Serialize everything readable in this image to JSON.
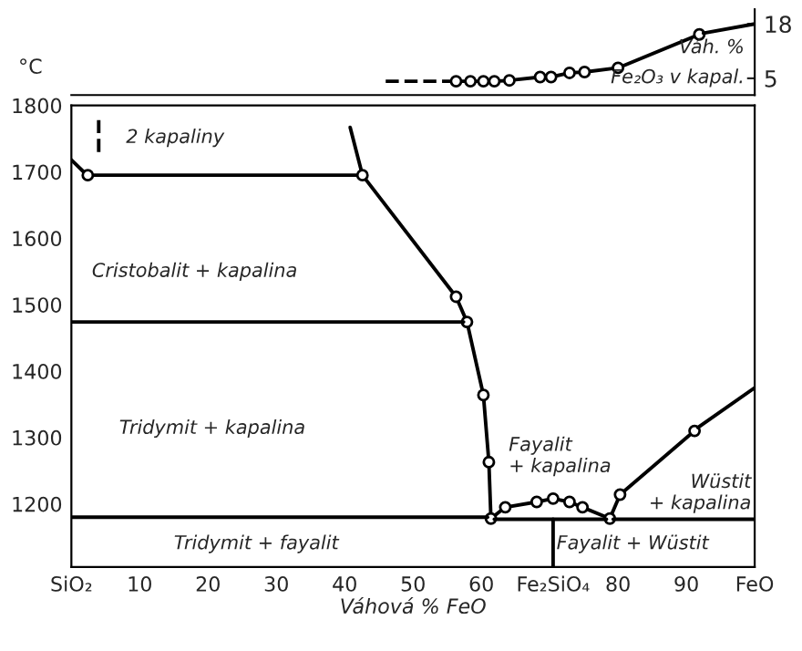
{
  "chart_data": [
    {
      "type": "line",
      "xlim": [
        0,
        100
      ],
      "ylim": [
        1,
        21.5
      ],
      "yticks": [
        5,
        18
      ],
      "tick_labels": "y",
      "grid": false,
      "legend": false,
      "series": [
        {
          "color": "#000000",
          "line_style": "dashed",
          "marker": "none",
          "x": [
            46,
            55.6
          ],
          "values": [
            4.3,
            4.3
          ]
        },
        {
          "color": "#000000",
          "line_style": "solid",
          "marker": "circle",
          "x": [
            56.3,
            58.4,
            60.3,
            61.9,
            64.1,
            68.6,
            70.2,
            72.9,
            75.1,
            80,
            91.9
          ],
          "values": [
            4.3,
            4.3,
            4.3,
            4.3,
            4.5,
            5.3,
            5.3,
            6.3,
            6.5,
            7.5,
            15.5
          ]
        },
        {
          "color": "#000000",
          "line_style": "solid",
          "marker": "none",
          "x": [
            92.5,
            100
          ],
          "values": [
            15.8,
            18
          ]
        }
      ],
      "annotations": [
        "Váh. %",
        "Fe₂O₃ v kapal."
      ]
    },
    {
      "type": "line",
      "xlim": [
        0,
        100
      ],
      "ylim": [
        1105,
        1800
      ],
      "yticks": [
        1200,
        1300,
        1400,
        1500,
        1600,
        1700,
        1800
      ],
      "xticks": [
        {
          "value": 0,
          "label": "SiO₂"
        },
        10,
        20,
        30,
        40,
        50,
        60,
        {
          "value": 70.5,
          "label": "Fe₂SiO₄"
        },
        80,
        90,
        {
          "value": 100,
          "label": "FeO"
        }
      ],
      "xlabel": "Váhová % FeO",
      "ylabel": "°C",
      "grid": false,
      "legend": false,
      "series": [
        {
          "color": "#000000",
          "line_style": "solid",
          "marker": "none",
          "x": [
            0,
            1.9
          ],
          "values": [
            1718,
            1699
          ]
        },
        {
          "color": "#000000",
          "line_style": "dashed",
          "marker": "none",
          "x": [
            4,
            4
          ],
          "values": [
            1730,
            1778
          ]
        },
        {
          "color": "#000000",
          "line_style": "solid",
          "marker": "none",
          "x": [
            40.8,
            42.4
          ],
          "values": [
            1767,
            1703
          ]
        },
        {
          "color": "#000000",
          "line_style": "solid",
          "marker": "circle",
          "x": [
            2.4,
            42.6,
            56.3,
            57.9,
            60.3,
            61.1,
            61.4,
            63.5,
            68.1,
            70.5,
            72.9,
            74.8,
            78.8,
            80.3,
            91.2
          ],
          "values": [
            1695,
            1695,
            1512,
            1474,
            1364,
            1263,
            1178,
            1195,
            1203,
            1208,
            1203,
            1195,
            1178,
            1214,
            1310
          ]
        },
        {
          "color": "#000000",
          "line_style": "solid",
          "marker": "none",
          "x": [
            91.7,
            100
          ],
          "values": [
            1315,
            1375
          ]
        },
        {
          "color": "#000000",
          "line_style": "solid",
          "marker": "none",
          "x": [
            0,
            57.4
          ],
          "values": [
            1474,
            1474
          ]
        },
        {
          "color": "#000000",
          "line_style": "solid",
          "marker": "none",
          "x": [
            0,
            60.9
          ],
          "values": [
            1180,
            1180
          ]
        },
        {
          "color": "#000000",
          "line_style": "solid",
          "marker": "none",
          "x": [
            61.9,
            78.3
          ],
          "values": [
            1177,
            1177
          ]
        },
        {
          "color": "#000000",
          "line_style": "solid",
          "marker": "none",
          "x": [
            79.3,
            100
          ],
          "values": [
            1177,
            1177
          ]
        },
        {
          "color": "#000000",
          "line_style": "solid",
          "marker": "none",
          "x": [
            70.5,
            70.5
          ],
          "values": [
            1105,
            1177
          ]
        }
      ],
      "annotations": [
        "2 kapaliny",
        "Cristobalit + kapalina",
        "Tridymit + kapalina",
        "Fayalit\n+ kapalina",
        "Wüstit\n+ kapalina",
        "Tridymit + fayalit",
        "Fayalit + Wüstit"
      ]
    }
  ]
}
